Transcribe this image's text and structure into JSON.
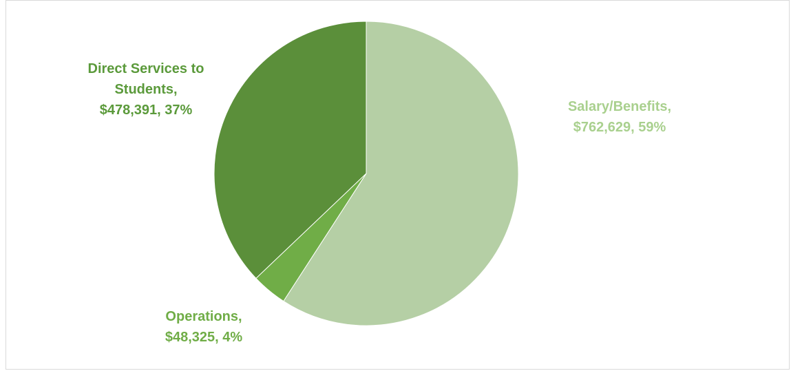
{
  "chart_data": {
    "type": "pie",
    "categories": [
      "Salary/Benefits,",
      "Operations,",
      "Direct Services to Students,"
    ],
    "values": [
      762629,
      48325,
      478391
    ],
    "value_labels": [
      "$762,629, 59%",
      "$48,325, 4%",
      "$478,391, 37%"
    ],
    "colors": [
      "#b5cfa5",
      "#70ad47",
      "#5b8f3a"
    ]
  }
}
